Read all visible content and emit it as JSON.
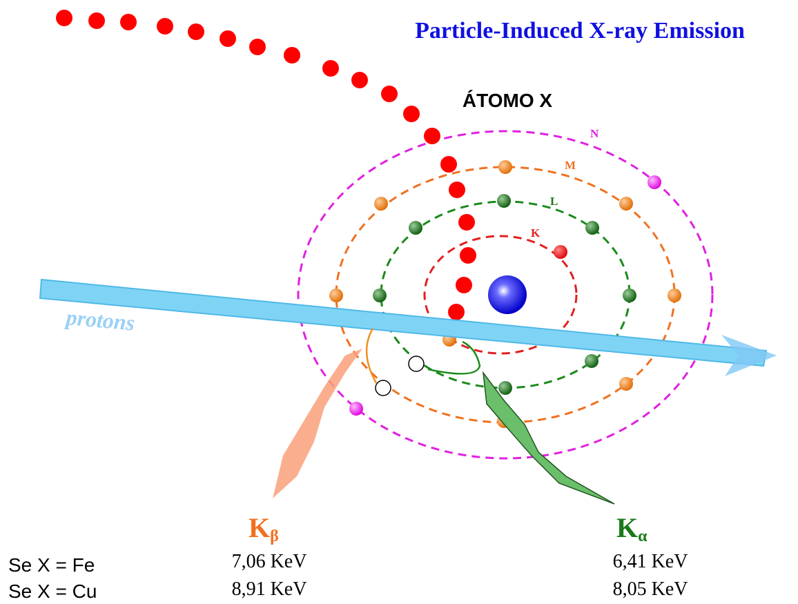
{
  "header": {
    "title": "Particle-Induced X-ray Emission"
  },
  "atom": {
    "label": "ÁTOMO X",
    "shells": [
      "N",
      "M",
      "L",
      "K"
    ]
  },
  "beam": {
    "label": "protons"
  },
  "lines": [
    {
      "symbol": "K",
      "subscript": "β"
    },
    {
      "symbol": "K",
      "subscript": "α"
    }
  ],
  "table": {
    "rows": [
      [
        "Se X = Fe",
        "7,06 KeV",
        "6,41 KeV"
      ],
      [
        "Se X = Cu",
        "8,91 KeV",
        "8,05 KeV"
      ]
    ]
  }
}
